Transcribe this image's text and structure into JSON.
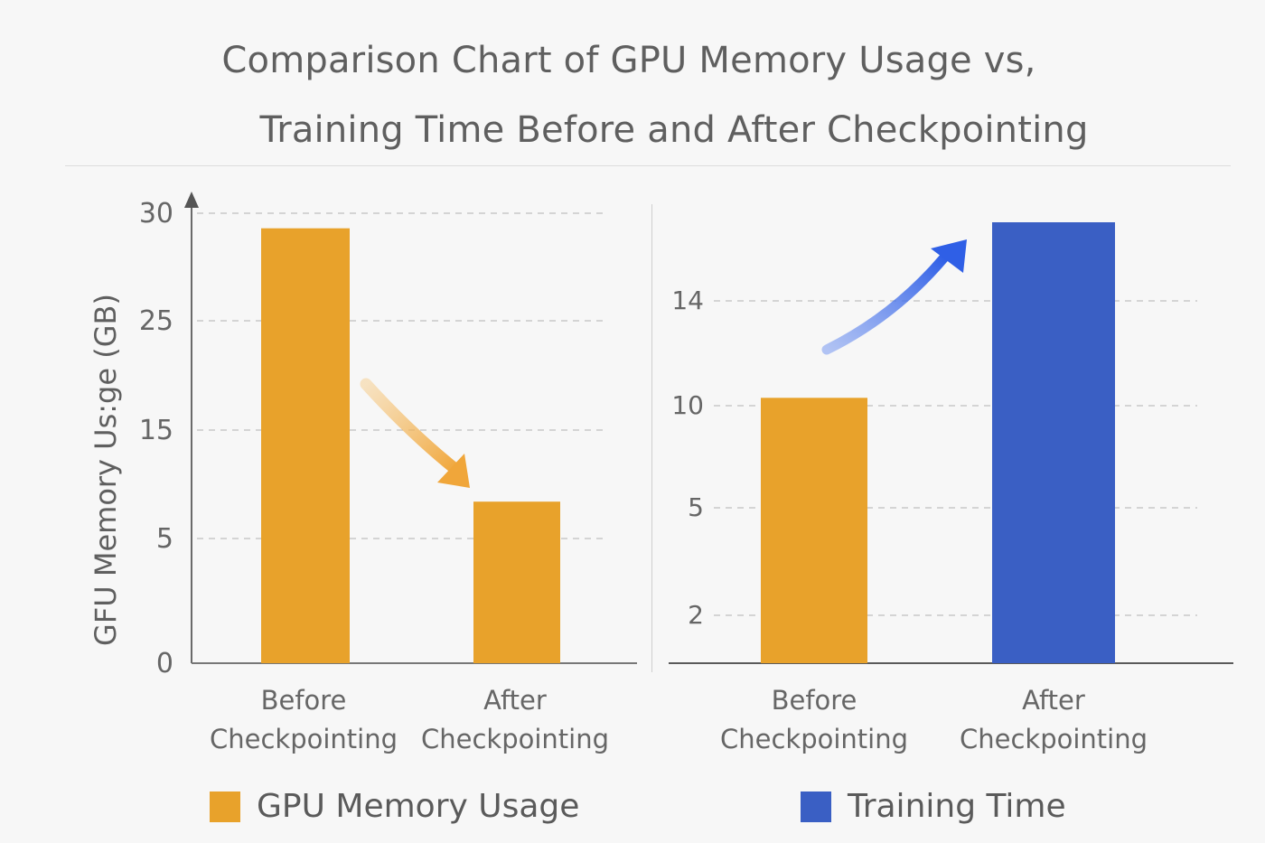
{
  "title": {
    "line1": "Comparison Chart of GPU Memory Usage vs,",
    "line2": "Training Time Before and After Checkpointing"
  },
  "chart_data": [
    {
      "type": "bar",
      "categories": [
        "Before\nCheckpointing",
        "After\nCheckpointing"
      ],
      "values": [
        29.3,
        8.4
      ],
      "ylabel": "GFU Memory Us:ge (GB)",
      "yticks": [
        "0",
        "5",
        "15",
        "25",
        "30"
      ],
      "tick_values": [
        0,
        5,
        15,
        25,
        30
      ],
      "ylim": [
        0,
        30
      ],
      "color": "#e8a22b",
      "grid": true
    },
    {
      "type": "bar",
      "categories": [
        "Before\nCheckpointing",
        "After\nCheckpointing"
      ],
      "values": [
        10.3,
        17.0
      ],
      "ylabel": "",
      "yticks": [
        "2",
        "5",
        "10",
        "14"
      ],
      "tick_values": [
        2,
        5,
        10,
        14
      ],
      "colors": [
        "#e8a22b",
        "#3a5fc4"
      ],
      "grid": true
    }
  ],
  "legend": {
    "items": [
      {
        "label": "GPU Memory Usage",
        "color": "#e8a22b"
      },
      {
        "label": "Training Time",
        "color": "#3a5fc4"
      }
    ],
    "placement": "bottom"
  }
}
